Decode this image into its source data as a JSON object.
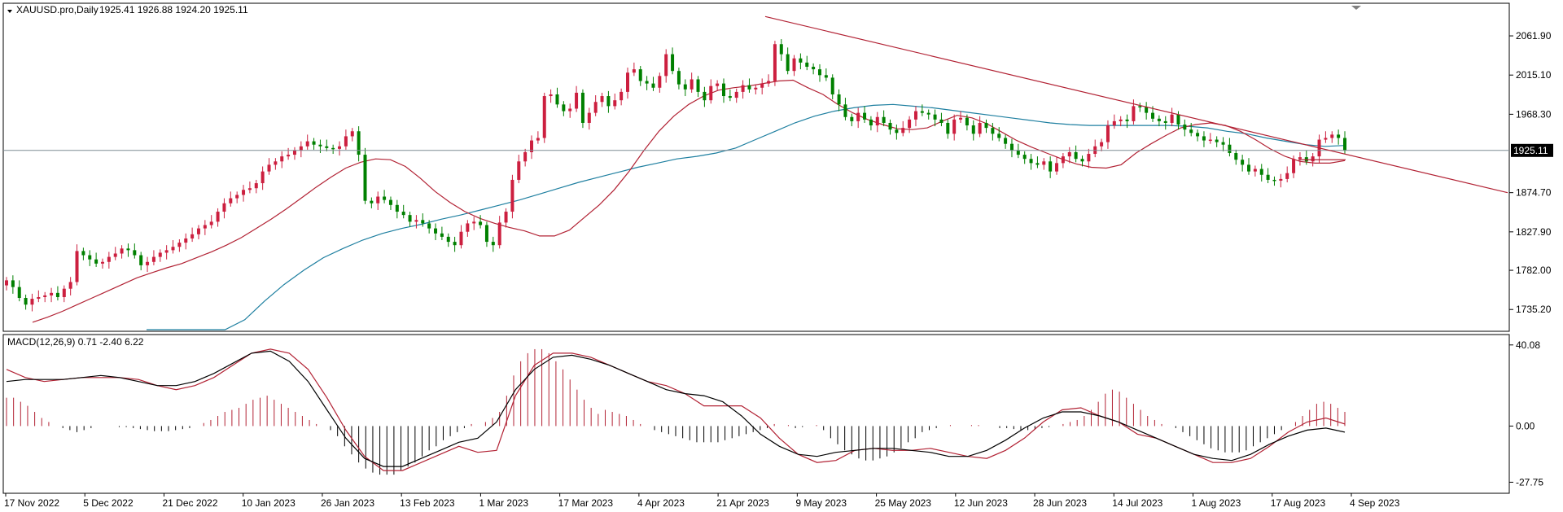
{
  "window": {
    "title": "XAUUSD.pro,Daily",
    "ohlc": "1925.41 1926.88 1924.20 1925.11",
    "current_price": "1925.11"
  },
  "colors": {
    "bull": "#cc1f3f",
    "bear": "#008000",
    "ma_fast": "#b22234",
    "ma_slow": "#1e7fa0",
    "trendline": "#b22234",
    "macd_hist": "#b22234",
    "macd_hist_neg": "#000000",
    "macd_line": "#b22234",
    "signal_line": "#000000",
    "price_label_bg": "#000000"
  },
  "main_pane": {
    "y_ticks": [
      "2061.90",
      "2015.10",
      "1968.30",
      "1874.70",
      "1827.90",
      "1782.00",
      "1735.20"
    ],
    "y_range": [
      1715,
      2095
    ]
  },
  "macd_pane": {
    "label": "MACD(12,26,9) 0.71 -2.40 6.22",
    "y_ticks": [
      "40.08",
      "0.00",
      "-27.75"
    ],
    "y_range": [
      -30,
      42
    ]
  },
  "x_axis": {
    "labels": [
      "17 Nov 2022",
      "5 Dec 2022",
      "21 Dec 2022",
      "10 Jan 2023",
      "26 Jan 2023",
      "13 Feb 2023",
      "1 Mar 2023",
      "17 Mar 2023",
      "4 Apr 2023",
      "21 Apr 2023",
      "9 May 2023",
      "25 May 2023",
      "12 Jun 2023",
      "28 Jun 2023",
      "14 Jul 2023",
      "1 Aug 2023",
      "17 Aug 2023",
      "4 Sep 2023"
    ]
  },
  "chart_data": {
    "type": "candlestick",
    "symbol": "XAUUSD.pro",
    "timeframe": "Daily",
    "closes": [
      1770,
      1762,
      1749,
      1741,
      1748,
      1750,
      1752,
      1755,
      1750,
      1760,
      1768,
      1805,
      1800,
      1795,
      1790,
      1792,
      1798,
      1802,
      1808,
      1806,
      1800,
      1788,
      1792,
      1798,
      1803,
      1806,
      1810,
      1815,
      1820,
      1825,
      1832,
      1836,
      1840,
      1852,
      1862,
      1868,
      1872,
      1878,
      1880,
      1886,
      1900,
      1908,
      1912,
      1918,
      1920,
      1925,
      1930,
      1936,
      1932,
      1930,
      1928,
      1927,
      1930,
      1942,
      1948,
      1920,
      1865,
      1862,
      1870,
      1866,
      1860,
      1852,
      1848,
      1840,
      1842,
      1838,
      1832,
      1826,
      1822,
      1816,
      1812,
      1828,
      1838,
      1840,
      1836,
      1816,
      1812,
      1839,
      1852,
      1890,
      1912,
      1923,
      1937,
      1940,
      1990,
      1992,
      1980,
      1972,
      1975,
      1994,
      1958,
      1970,
      1983,
      1990,
      1978,
      1985,
      1995,
      2018,
      2022,
      2008,
      2005,
      2000,
      2014,
      2040,
      2020,
      2004,
      1998,
      2010,
      1995,
      1985,
      2002,
      2005,
      1990,
      1988,
      1995,
      2003,
      1998,
      2000,
      2005,
      2008,
      2052,
      2040,
      2020,
      2035,
      2030,
      2025,
      2022,
      2015,
      2012,
      1992,
      1980,
      1965,
      1960,
      1970,
      1962,
      1955,
      1965,
      1958,
      1950,
      1946,
      1952,
      1962,
      1972,
      1970,
      1968,
      1962,
      1958,
      1945,
      1962,
      1964,
      1955,
      1945,
      1958,
      1952,
      1945,
      1940,
      1933,
      1925,
      1920,
      1915,
      1910,
      1908,
      1912,
      1900,
      1910,
      1918,
      1923,
      1915,
      1912,
      1921,
      1930,
      1935,
      1955,
      1960,
      1962,
      1960,
      1978,
      1977,
      1970,
      1963,
      1960,
      1958,
      1968,
      1956,
      1950,
      1946,
      1942,
      1937,
      1938,
      1935,
      1932,
      1922,
      1914,
      1908,
      1900,
      1903,
      1896,
      1890,
      1889,
      1891,
      1898,
      1915,
      1917,
      1912,
      1918,
      1938,
      1940,
      1944,
      1940,
      1925
    ],
    "ma_fast": [
      1720,
      1726,
      1733,
      1741,
      1749,
      1757,
      1765,
      1773,
      1779,
      1785,
      1790,
      1797,
      1804,
      1812,
      1821,
      1832,
      1843,
      1855,
      1868,
      1881,
      1893,
      1904,
      1911,
      1915,
      1914,
      1906,
      1892,
      1876,
      1863,
      1852,
      1844,
      1838,
      1833,
      1829,
      1823,
      1823,
      1830,
      1845,
      1860,
      1878,
      1900,
      1925,
      1948,
      1966,
      1980,
      1990,
      1997,
      2000,
      2002,
      2005,
      2008,
      2009,
      2000,
      1992,
      1980,
      1970,
      1962,
      1956,
      1951,
      1950,
      1952,
      1960,
      1967,
      1964,
      1957,
      1947,
      1937,
      1929,
      1922,
      1915,
      1909,
      1905,
      1904,
      1908,
      1922,
      1933,
      1943,
      1952,
      1956,
      1958,
      1955,
      1948,
      1938,
      1927,
      1918,
      1912,
      1910,
      1910,
      1913
    ],
    "ma_slow": [
      1590,
      1620,
      1648,
      1675,
      1700,
      1723,
      1745,
      1765,
      1782,
      1797,
      1808,
      1818,
      1826,
      1832,
      1837,
      1843,
      1848,
      1854,
      1860,
      1866,
      1873,
      1880,
      1887,
      1893,
      1899,
      1905,
      1910,
      1915,
      1918,
      1922,
      1928,
      1938,
      1948,
      1958,
      1966,
      1972,
      1976,
      1979,
      1980,
      1978,
      1976,
      1973,
      1970,
      1967,
      1964,
      1961,
      1958,
      1956,
      1955,
      1955,
      1955,
      1955,
      1955,
      1954,
      1952,
      1948,
      1945,
      1940,
      1936,
      1932,
      1930,
      1931
    ],
    "trendline": {
      "start": 2085,
      "end": 1874.7
    },
    "support_line": 1914,
    "current_price": 1925.11,
    "macd": {
      "histogram": [
        14,
        14,
        12,
        10,
        7,
        4,
        2,
        0,
        -1,
        -2,
        -3,
        -2,
        -1,
        0,
        0,
        0,
        -0.5,
        -0.5,
        -1,
        -1.5,
        -2,
        -2.5,
        -2.5,
        -2.5,
        -2,
        -1.5,
        -1,
        0,
        1.5,
        3,
        5,
        7,
        8,
        9,
        11,
        13,
        14,
        15,
        13,
        11,
        9,
        7,
        5,
        3,
        1,
        0,
        -2,
        -5,
        -10,
        -14,
        -18,
        -21,
        -23,
        -24,
        -24,
        -24,
        -22,
        -20,
        -18,
        -15,
        -12,
        -10,
        -7,
        -5,
        -3,
        -1,
        1,
        0,
        2,
        4,
        7,
        15,
        25,
        32,
        36,
        38,
        38,
        36,
        32,
        28,
        23,
        18,
        13,
        9,
        6,
        8,
        7,
        6,
        5,
        3,
        1,
        0,
        -2,
        -3,
        -4,
        -5,
        -6,
        -7,
        -8,
        -8,
        -8,
        -8,
        -7,
        -6,
        -5,
        -4,
        -3,
        -2,
        -1,
        1,
        0,
        0.5,
        -1,
        -0.5,
        0,
        0.5,
        -2,
        -6,
        -9,
        -12,
        -14,
        -16,
        -17,
        -17,
        -16,
        -15,
        -13,
        -11,
        -8,
        -6,
        -3,
        -2,
        -1,
        0,
        0.5,
        0,
        0,
        0.5,
        0.5,
        0,
        0,
        -1,
        -1,
        -1.5,
        -2,
        -2,
        -1.5,
        -1,
        -0.5,
        0,
        1,
        2,
        3,
        5,
        8,
        12,
        16,
        18,
        17,
        14,
        11,
        8,
        5,
        3,
        1,
        0,
        -1,
        -3,
        -5,
        -7,
        -9,
        -11,
        -12,
        -13,
        -13,
        -13,
        -12,
        -10,
        -8,
        -6,
        -4,
        -2,
        0,
        2,
        5,
        8,
        11,
        12,
        11,
        9,
        7
      ],
      "macd_line": [
        28,
        24,
        22,
        23,
        24,
        24,
        24,
        23,
        20,
        18,
        20,
        24,
        30,
        36,
        38,
        36,
        28,
        14,
        -2,
        -15,
        -22,
        -22,
        -18,
        -14,
        -10,
        -13,
        -12,
        15,
        30,
        36,
        36,
        34,
        30,
        26,
        22,
        20,
        16,
        10,
        10,
        10,
        4,
        -6,
        -14,
        -18,
        -17,
        -12,
        -11,
        -12,
        -12,
        -11,
        -13,
        -15,
        -16,
        -12,
        -6,
        2,
        8,
        9,
        5,
        2,
        -4,
        -6,
        -10,
        -14,
        -18,
        -18,
        -16,
        -10,
        -3,
        2,
        4,
        1
      ],
      "signal_line": [
        22,
        23,
        23,
        23,
        24,
        25,
        24,
        22,
        20,
        20,
        22,
        26,
        31,
        36,
        37,
        32,
        22,
        8,
        -6,
        -16,
        -20,
        -20,
        -16,
        -12,
        -8,
        -6,
        2,
        18,
        28,
        34,
        35,
        33,
        30,
        26,
        22,
        18,
        16,
        15,
        12,
        5,
        -4,
        -10,
        -14,
        -15,
        -13,
        -12,
        -11,
        -11,
        -12,
        -13,
        -15,
        -15,
        -12,
        -7,
        -1,
        4,
        7,
        7,
        5,
        2,
        -2,
        -6,
        -10,
        -14,
        -16,
        -17,
        -14,
        -9,
        -5,
        -2,
        -1,
        -3
      ]
    }
  }
}
